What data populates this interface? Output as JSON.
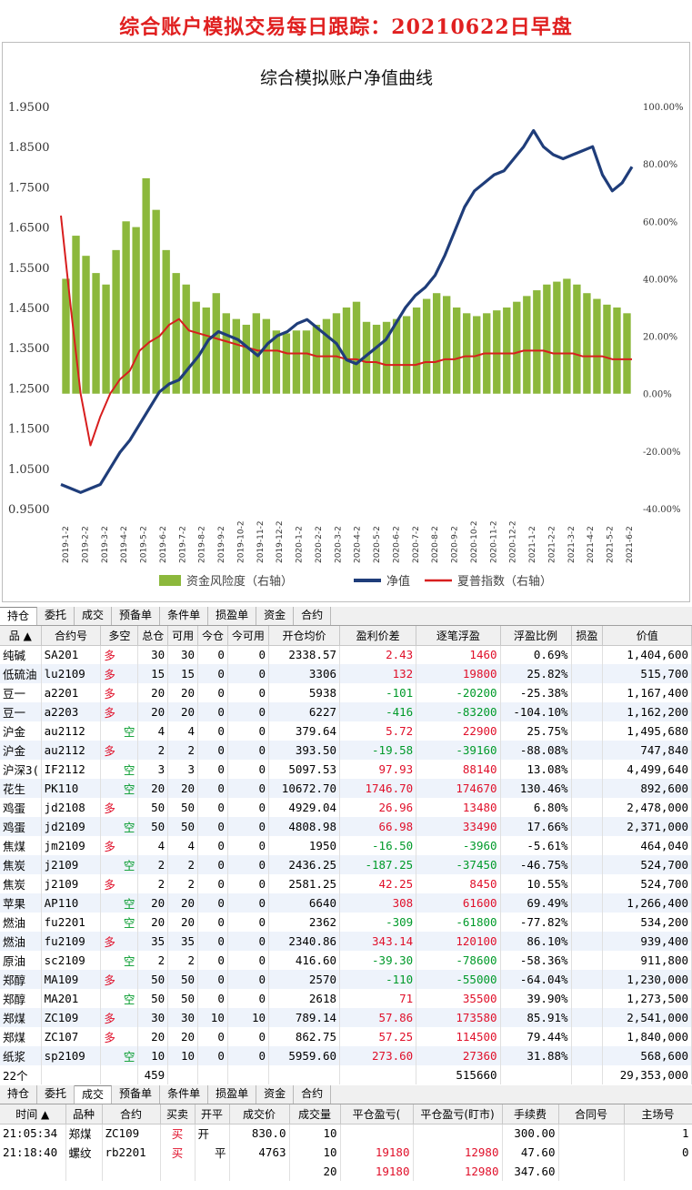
{
  "headline": "综合账户模拟交易每日跟踪：20210622日早盘",
  "chart_data": {
    "type": "bar+line",
    "title": "综合模拟账户净值曲线",
    "left_axis": {
      "ticks": [
        "1.9500",
        "1.8500",
        "1.7500",
        "1.6500",
        "1.5500",
        "1.4500",
        "1.3500",
        "1.2500",
        "1.1500",
        "1.0500",
        "0.9500"
      ],
      "ylim": [
        0.95,
        1.95
      ]
    },
    "right_axis": {
      "ticks": [
        "100.00%",
        "80.00%",
        "60.00%",
        "40.00%",
        "20.00%",
        "0.00%",
        "-20.00%",
        "-40.00%"
      ],
      "ylim": [
        -40,
        100
      ]
    },
    "x_ticks": [
      "2019-1-2",
      "2019-2-2",
      "2019-3-2",
      "2019-4-2",
      "2019-5-2",
      "2019-6-2",
      "2019-7-2",
      "2019-8-2",
      "2019-9-2",
      "2019-10-2",
      "2019-11-2",
      "2019-12-2",
      "2020-1-2",
      "2020-2-2",
      "2020-3-2",
      "2020-4-2",
      "2020-5-2",
      "2020-6-2",
      "2020-7-2",
      "2020-8-2",
      "2020-9-2",
      "2020-10-2",
      "2020-11-2",
      "2020-12-2",
      "2021-1-2",
      "2021-2-2",
      "2021-3-2",
      "2021-4-2",
      "2021-5-2",
      "2021-6-2"
    ],
    "series": [
      {
        "name": "资金风险度（右轴）",
        "axis": "right",
        "color": "#8cb83c",
        "values": [
          40,
          55,
          48,
          42,
          38,
          50,
          60,
          58,
          75,
          64,
          50,
          42,
          38,
          32,
          30,
          35,
          28,
          26,
          24,
          28,
          26,
          22,
          21,
          22,
          22,
          24,
          26,
          28,
          30,
          32,
          25,
          24,
          25,
          26,
          27,
          30,
          33,
          35,
          34,
          30,
          28,
          27,
          28,
          29,
          30,
          32,
          34,
          36,
          38,
          39,
          40,
          38,
          35,
          33,
          31,
          30,
          28
        ]
      },
      {
        "name": "净值",
        "axis": "left",
        "color": "#1f3d7a",
        "values": [
          1.01,
          1.0,
          0.99,
          1.0,
          1.01,
          1.05,
          1.09,
          1.12,
          1.16,
          1.2,
          1.24,
          1.26,
          1.27,
          1.3,
          1.33,
          1.37,
          1.39,
          1.38,
          1.37,
          1.35,
          1.33,
          1.36,
          1.38,
          1.39,
          1.41,
          1.42,
          1.4,
          1.38,
          1.36,
          1.32,
          1.31,
          1.33,
          1.35,
          1.37,
          1.41,
          1.45,
          1.48,
          1.5,
          1.53,
          1.58,
          1.64,
          1.7,
          1.74,
          1.76,
          1.78,
          1.79,
          1.82,
          1.85,
          1.89,
          1.85,
          1.83,
          1.82,
          1.83,
          1.84,
          1.85,
          1.78,
          1.74,
          1.76,
          1.8
        ]
      },
      {
        "name": "夏普指数（右轴）",
        "axis": "right",
        "color": "#d81e1e",
        "values": [
          62,
          30,
          0,
          -18,
          -8,
          0,
          5,
          8,
          15,
          18,
          20,
          24,
          26,
          22,
          21,
          20,
          19,
          18,
          17,
          16,
          15,
          15,
          15,
          14,
          14,
          14,
          13,
          13,
          13,
          12,
          12,
          11,
          11,
          10,
          10,
          10,
          10,
          11,
          11,
          12,
          12,
          13,
          13,
          14,
          14,
          14,
          14,
          15,
          15,
          15,
          14,
          14,
          14,
          13,
          13,
          13,
          12,
          12,
          12
        ]
      }
    ]
  },
  "positions": {
    "tabs": [
      "持仓",
      "委托",
      "成交",
      "预备单",
      "条件单",
      "损盈单",
      "资金",
      "合约"
    ],
    "active_tab": 0,
    "columns": [
      "品  ▲",
      "合约号",
      "多空",
      "总仓",
      "可用",
      "今仓",
      "今可用",
      "开仓均价",
      "盈利价差",
      "逐笔浮盈",
      "浮盈比例",
      "损盈",
      "价值"
    ],
    "rows": [
      [
        "纯碱",
        "SA201",
        "多",
        "30",
        "30",
        "0",
        "0",
        "2338.57",
        "2.43",
        "1460",
        "0.69%",
        "",
        "1,404,600"
      ],
      [
        "低硫油",
        "lu2109",
        "多",
        "15",
        "15",
        "0",
        "0",
        "3306",
        "132",
        "19800",
        "25.82%",
        "",
        "515,700"
      ],
      [
        "豆一",
        "a2201",
        "多",
        "20",
        "20",
        "0",
        "0",
        "5938",
        "-101",
        "-20200",
        "-25.38%",
        "",
        "1,167,400"
      ],
      [
        "豆一",
        "a2203",
        "多",
        "20",
        "20",
        "0",
        "0",
        "6227",
        "-416",
        "-83200",
        "-104.10%",
        "",
        "1,162,200"
      ],
      [
        "沪金",
        "au2112",
        "空",
        "4",
        "4",
        "0",
        "0",
        "379.64",
        "5.72",
        "22900",
        "25.75%",
        "",
        "1,495,680"
      ],
      [
        "沪金",
        "au2112",
        "多",
        "2",
        "2",
        "0",
        "0",
        "393.50",
        "-19.58",
        "-39160",
        "-88.08%",
        "",
        "747,840"
      ],
      [
        "沪深3(",
        "IF2112",
        "空",
        "3",
        "3",
        "0",
        "0",
        "5097.53",
        "97.93",
        "88140",
        "13.08%",
        "",
        "4,499,640"
      ],
      [
        "花生",
        "PK110",
        "空",
        "20",
        "20",
        "0",
        "0",
        "10672.70",
        "1746.70",
        "174670",
        "130.46%",
        "",
        "892,600"
      ],
      [
        "鸡蛋",
        "jd2108",
        "多",
        "50",
        "50",
        "0",
        "0",
        "4929.04",
        "26.96",
        "13480",
        "6.80%",
        "",
        "2,478,000"
      ],
      [
        "鸡蛋",
        "jd2109",
        "空",
        "50",
        "50",
        "0",
        "0",
        "4808.98",
        "66.98",
        "33490",
        "17.66%",
        "",
        "2,371,000"
      ],
      [
        "焦煤",
        "jm2109",
        "多",
        "4",
        "4",
        "0",
        "0",
        "1950",
        "-16.50",
        "-3960",
        "-5.61%",
        "",
        "464,040"
      ],
      [
        "焦炭",
        "j2109",
        "空",
        "2",
        "2",
        "0",
        "0",
        "2436.25",
        "-187.25",
        "-37450",
        "-46.75%",
        "",
        "524,700"
      ],
      [
        "焦炭",
        "j2109",
        "多",
        "2",
        "2",
        "0",
        "0",
        "2581.25",
        "42.25",
        "8450",
        "10.55%",
        "",
        "524,700"
      ],
      [
        "苹果",
        "AP110",
        "空",
        "20",
        "20",
        "0",
        "0",
        "6640",
        "308",
        "61600",
        "69.49%",
        "",
        "1,266,400"
      ],
      [
        "燃油",
        "fu2201",
        "空",
        "20",
        "20",
        "0",
        "0",
        "2362",
        "-309",
        "-61800",
        "-77.82%",
        "",
        "534,200"
      ],
      [
        "燃油",
        "fu2109",
        "多",
        "35",
        "35",
        "0",
        "0",
        "2340.86",
        "343.14",
        "120100",
        "86.10%",
        "",
        "939,400"
      ],
      [
        "原油",
        "sc2109",
        "空",
        "2",
        "2",
        "0",
        "0",
        "416.60",
        "-39.30",
        "-78600",
        "-58.36%",
        "",
        "911,800"
      ],
      [
        "郑醇",
        "MA109",
        "多",
        "50",
        "50",
        "0",
        "0",
        "2570",
        "-110",
        "-55000",
        "-64.04%",
        "",
        "1,230,000"
      ],
      [
        "郑醇",
        "MA201",
        "空",
        "50",
        "50",
        "0",
        "0",
        "2618",
        "71",
        "35500",
        "39.90%",
        "",
        "1,273,500"
      ],
      [
        "郑煤",
        "ZC109",
        "多",
        "30",
        "30",
        "10",
        "10",
        "789.14",
        "57.86",
        "173580",
        "85.91%",
        "",
        "2,541,000"
      ],
      [
        "郑煤",
        "ZC107",
        "多",
        "20",
        "20",
        "0",
        "0",
        "862.75",
        "57.25",
        "114500",
        "79.44%",
        "",
        "1,840,000"
      ],
      [
        "纸浆",
        "sp2109",
        "空",
        "10",
        "10",
        "0",
        "0",
        "5959.60",
        "273.60",
        "27360",
        "31.88%",
        "",
        "568,600"
      ]
    ],
    "summary": {
      "count": "22个",
      "total": "459",
      "float": "515660",
      "value": "29,353,000"
    }
  },
  "trades": {
    "tabs": [
      "持仓",
      "委托",
      "成交",
      "预备单",
      "条件单",
      "损盈单",
      "资金",
      "合约"
    ],
    "active_tab": 2,
    "columns": [
      "时间 ▲",
      "品种",
      "合约",
      "买卖",
      "开平",
      "成交价",
      "成交量",
      "平仓盈亏(",
      "平仓盈亏(盯市)",
      "手续费",
      "合同号",
      "主场号"
    ],
    "rows": [
      [
        "21:05:34",
        "郑煤",
        "ZC109",
        "买",
        "开",
        "830.0",
        "10",
        "",
        "",
        "300.00",
        "",
        "1"
      ],
      [
        "21:18:40",
        "螺纹",
        "rb2201",
        "买",
        "平",
        "4763",
        "10",
        "19180",
        "12980",
        "47.60",
        "",
        "0"
      ]
    ],
    "summary": {
      "volume": "20",
      "close_pl": "19180",
      "close_pl_mtm": "12980",
      "fee": "347.60"
    }
  }
}
